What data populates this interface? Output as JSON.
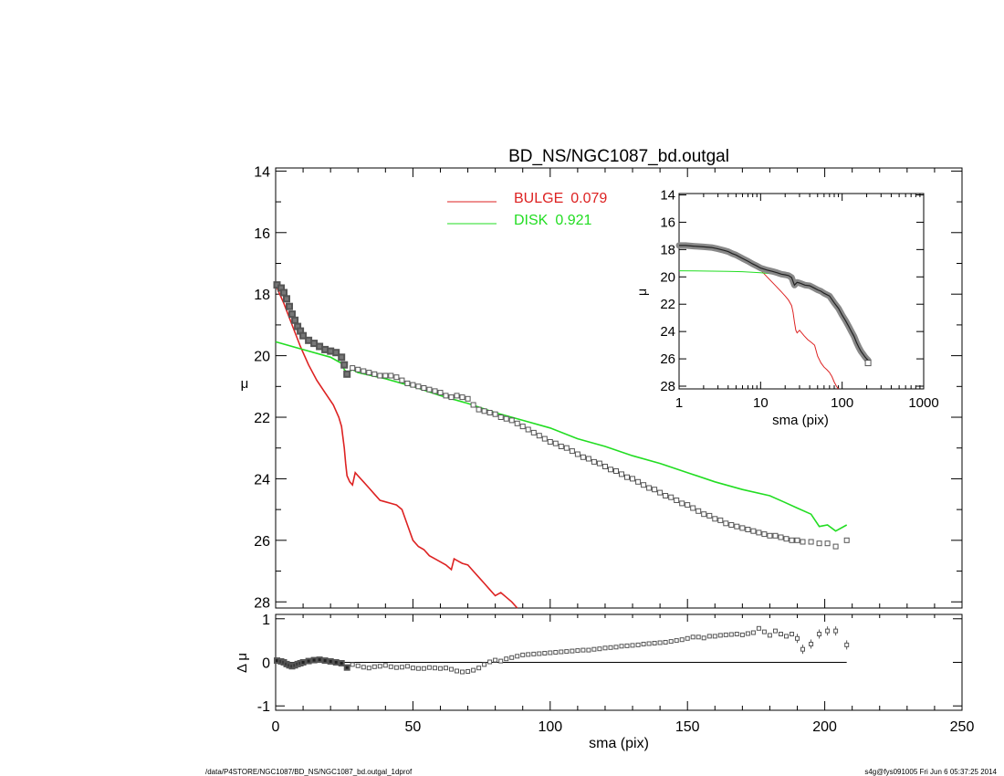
{
  "chart_data": [
    {
      "panel": "main",
      "type": "line",
      "title": "BD_NS/NGC1087_bd.outgal",
      "xlabel": "",
      "ylabel": "μ",
      "xlim": [
        0,
        250
      ],
      "ylim": [
        28.2,
        13.9
      ],
      "y_inverted": true,
      "xticks": [
        "0",
        "50",
        "100",
        "150",
        "200",
        "250"
      ],
      "yticks": [
        "14",
        "16",
        "18",
        "20",
        "22",
        "24",
        "26",
        "28"
      ],
      "legend": {
        "placement": "top-center",
        "entries": [
          {
            "label": "BULGE",
            "value": "0.079",
            "color": "#dd2222"
          },
          {
            "label": "DISK",
            "value": "0.921",
            "color": "#22dd22"
          }
        ]
      },
      "series": [
        {
          "kind": "data-points",
          "color": "#555555",
          "x": [
            0.5,
            2,
            3,
            4,
            5,
            6,
            7,
            8,
            9,
            10,
            12,
            14,
            16,
            18,
            20,
            22,
            24,
            25,
            26,
            28,
            30,
            32,
            34,
            36,
            38,
            40,
            42,
            44,
            46,
            48,
            50,
            52,
            54,
            56,
            58,
            60,
            62,
            64,
            66,
            68,
            70,
            72,
            74,
            76,
            78,
            80,
            82,
            84,
            86,
            88,
            90,
            92,
            94,
            96,
            98,
            100,
            102,
            104,
            106,
            108,
            110,
            112,
            114,
            116,
            118,
            120,
            122,
            124,
            126,
            128,
            130,
            132,
            134,
            136,
            138,
            140,
            142,
            144,
            146,
            148,
            150,
            152,
            154,
            156,
            158,
            160,
            162,
            164,
            166,
            168,
            170,
            172,
            174,
            176,
            178,
            180,
            182,
            184,
            186,
            188,
            190,
            192,
            195,
            198,
            201,
            204,
            208
          ],
          "y": [
            17.7,
            17.8,
            17.95,
            18.15,
            18.4,
            18.65,
            18.85,
            19.05,
            19.2,
            19.35,
            19.5,
            19.6,
            19.7,
            19.8,
            19.85,
            19.9,
            20.05,
            20.3,
            20.6,
            20.4,
            20.45,
            20.5,
            20.55,
            20.6,
            20.65,
            20.65,
            20.65,
            20.7,
            20.8,
            20.9,
            20.95,
            21.0,
            21.05,
            21.1,
            21.15,
            21.2,
            21.3,
            21.35,
            21.3,
            21.35,
            21.4,
            21.6,
            21.75,
            21.8,
            21.85,
            21.9,
            22.0,
            22.05,
            22.1,
            22.2,
            22.3,
            22.4,
            22.5,
            22.6,
            22.7,
            22.8,
            22.85,
            22.95,
            23.0,
            23.1,
            23.2,
            23.3,
            23.35,
            23.45,
            23.5,
            23.6,
            23.7,
            23.75,
            23.85,
            23.95,
            24.0,
            24.1,
            24.2,
            24.3,
            24.35,
            24.45,
            24.55,
            24.6,
            24.7,
            24.8,
            24.85,
            24.95,
            25.05,
            25.15,
            25.2,
            25.3,
            25.35,
            25.45,
            25.5,
            25.55,
            25.6,
            25.65,
            25.7,
            25.75,
            25.8,
            25.85,
            25.85,
            25.9,
            25.95,
            26.0,
            26.0,
            26.05,
            26.05,
            26.1,
            26.1,
            26.2,
            26.0
          ]
        },
        {
          "kind": "model",
          "name": "BULGE",
          "color": "#dd2222",
          "x": [
            0,
            3,
            6,
            9,
            12,
            15,
            18,
            21,
            23,
            24,
            25,
            25.5,
            26,
            27,
            28,
            29,
            30,
            32,
            34,
            36,
            38,
            40,
            42,
            44,
            46,
            48,
            50,
            52,
            54,
            56,
            58,
            60,
            62,
            64,
            65,
            66,
            68,
            70,
            72,
            74,
            76,
            78,
            80,
            82,
            84,
            86,
            88
          ],
          "y": [
            17.7,
            18.3,
            19.0,
            19.7,
            20.3,
            20.8,
            21.2,
            21.6,
            22.0,
            22.3,
            23.0,
            23.5,
            23.9,
            24.1,
            24.2,
            23.8,
            23.9,
            24.1,
            24.3,
            24.5,
            24.7,
            24.75,
            24.8,
            24.85,
            25.0,
            25.5,
            26.0,
            26.2,
            26.3,
            26.5,
            26.6,
            26.7,
            26.8,
            26.95,
            26.6,
            26.65,
            26.75,
            26.8,
            27.0,
            27.2,
            27.4,
            27.6,
            27.8,
            27.7,
            27.85,
            28.0,
            28.2
          ]
        },
        {
          "kind": "model",
          "name": "DISK",
          "color": "#22dd22",
          "x": [
            0,
            10,
            20,
            24,
            25,
            26,
            27,
            28,
            30,
            40,
            50,
            60,
            70,
            80,
            90,
            100,
            110,
            120,
            130,
            140,
            150,
            160,
            170,
            180,
            185,
            190,
            195,
            198,
            201,
            204,
            208
          ],
          "y": [
            19.55,
            19.8,
            20.05,
            20.25,
            20.45,
            20.55,
            20.5,
            20.45,
            20.55,
            20.75,
            21.0,
            21.3,
            21.55,
            21.85,
            22.1,
            22.35,
            22.7,
            22.95,
            23.25,
            23.5,
            23.8,
            24.1,
            24.35,
            24.55,
            24.75,
            24.95,
            25.15,
            25.55,
            25.5,
            25.7,
            25.5
          ]
        }
      ]
    },
    {
      "panel": "residual",
      "type": "scatter",
      "xlabel": "sma (pix)",
      "ylabel": "Δ μ",
      "xlim": [
        0,
        250
      ],
      "ylim": [
        -1.1,
        1.1
      ],
      "xticks": [
        "0",
        "50",
        "100",
        "150",
        "200",
        "250"
      ],
      "yticks": [
        "1",
        "0",
        "-1"
      ],
      "zero_line": {
        "x_start": 0,
        "x_end": 208
      },
      "series": [
        {
          "kind": "residuals",
          "color": "#555555",
          "x": [
            0.5,
            2,
            3,
            4,
            5,
            6,
            7,
            8,
            9,
            10,
            12,
            14,
            16,
            18,
            20,
            22,
            24,
            26,
            28,
            30,
            32,
            34,
            36,
            38,
            40,
            42,
            44,
            46,
            48,
            50,
            52,
            54,
            56,
            58,
            60,
            62,
            64,
            66,
            68,
            70,
            72,
            74,
            76,
            78,
            80,
            82,
            84,
            86,
            88,
            90,
            92,
            94,
            96,
            98,
            100,
            102,
            104,
            106,
            108,
            110,
            112,
            114,
            116,
            118,
            120,
            122,
            124,
            126,
            128,
            130,
            132,
            134,
            136,
            138,
            140,
            142,
            144,
            146,
            148,
            150,
            152,
            154,
            156,
            158,
            160,
            162,
            164,
            166,
            168,
            170,
            172,
            174,
            176,
            178,
            180,
            182,
            184,
            186,
            188,
            190,
            192,
            195,
            198,
            201,
            204,
            208
          ],
          "y": [
            0.04,
            0.02,
            0.0,
            -0.04,
            -0.07,
            -0.09,
            -0.07,
            -0.04,
            -0.02,
            0.0,
            0.03,
            0.05,
            0.06,
            0.04,
            0.02,
            0.0,
            -0.02,
            -0.12,
            -0.05,
            -0.08,
            -0.11,
            -0.13,
            -0.1,
            -0.09,
            -0.07,
            -0.1,
            -0.12,
            -0.11,
            -0.09,
            -0.13,
            -0.14,
            -0.14,
            -0.12,
            -0.13,
            -0.14,
            -0.13,
            -0.16,
            -0.2,
            -0.22,
            -0.21,
            -0.18,
            -0.13,
            -0.05,
            0.01,
            0.05,
            0.03,
            0.08,
            0.11,
            0.14,
            0.17,
            0.18,
            0.19,
            0.2,
            0.21,
            0.22,
            0.23,
            0.24,
            0.25,
            0.26,
            0.27,
            0.28,
            0.28,
            0.3,
            0.31,
            0.33,
            0.34,
            0.35,
            0.37,
            0.38,
            0.39,
            0.4,
            0.42,
            0.43,
            0.44,
            0.45,
            0.46,
            0.48,
            0.5,
            0.52,
            0.55,
            0.58,
            0.58,
            0.56,
            0.6,
            0.6,
            0.62,
            0.63,
            0.64,
            0.65,
            0.63,
            0.66,
            0.68,
            0.78,
            0.7,
            0.62,
            0.72,
            0.65,
            0.6,
            0.65,
            0.55,
            0.3,
            0.42,
            0.65,
            0.72,
            0.72,
            0.4
          ]
        }
      ]
    },
    {
      "panel": "inset",
      "type": "line",
      "xlabel": "sma (pix)",
      "ylabel": "μ",
      "x_scale": "log",
      "xlim": [
        1,
        1000
      ],
      "ylim": [
        28.2,
        13.9
      ],
      "y_inverted": true,
      "xticks": [
        "1",
        "10",
        "100",
        "1000"
      ],
      "yticks": [
        "14",
        "16",
        "18",
        "20",
        "22",
        "24",
        "26",
        "28"
      ],
      "series": [
        {
          "kind": "data-points",
          "color": "#555555",
          "x": [
            1,
            1.2,
            1.5,
            2,
            2.5,
            3,
            3.5,
            4,
            4.5,
            5,
            6,
            7,
            8,
            9,
            10,
            12,
            14,
            16,
            18,
            20,
            22,
            24,
            26,
            28,
            30,
            35,
            40,
            45,
            50,
            55,
            60,
            70,
            80,
            90,
            100,
            110,
            120,
            130,
            140,
            150,
            160,
            170,
            180,
            190,
            200,
            208
          ],
          "y": [
            17.7,
            17.7,
            17.75,
            17.8,
            17.85,
            17.95,
            18.05,
            18.15,
            18.3,
            18.4,
            18.65,
            18.85,
            19.05,
            19.2,
            19.35,
            19.5,
            19.6,
            19.7,
            19.8,
            19.85,
            19.9,
            20.05,
            20.6,
            20.4,
            20.45,
            20.6,
            20.65,
            20.8,
            20.95,
            21.05,
            21.2,
            21.4,
            21.9,
            22.3,
            22.8,
            23.2,
            23.6,
            24.0,
            24.35,
            24.8,
            25.15,
            25.45,
            25.65,
            25.85,
            26.0,
            26.1
          ]
        },
        {
          "kind": "model",
          "name": "BULGE",
          "color": "#dd2222",
          "x": [
            1,
            2,
            3,
            4,
            5,
            6,
            8,
            10,
            12,
            15,
            18,
            20,
            22,
            24,
            25,
            26,
            27,
            28,
            30,
            34,
            38,
            42,
            46,
            50,
            55,
            60,
            65,
            70,
            75,
            80,
            85,
            90
          ],
          "y": [
            17.7,
            17.9,
            18.1,
            18.25,
            18.4,
            18.6,
            19.0,
            19.5,
            20.0,
            20.6,
            21.1,
            21.4,
            21.7,
            22.1,
            22.6,
            23.3,
            23.9,
            24.1,
            23.9,
            24.3,
            24.6,
            24.8,
            25.0,
            25.8,
            26.3,
            26.6,
            26.8,
            27.0,
            27.3,
            27.7,
            28.0,
            28.2
          ]
        },
        {
          "kind": "model",
          "name": "DISK",
          "color": "#22dd22",
          "x": [
            1,
            2,
            4,
            6,
            10,
            15,
            20,
            25,
            28
          ],
          "y": [
            19.55,
            19.57,
            19.6,
            19.62,
            19.7,
            19.8,
            19.95,
            20.2,
            20.5
          ]
        }
      ]
    }
  ],
  "footer": {
    "left": "/data/P4STORE/NGC1087/BD_NS/NGC1087_bd.outgal_1dprof",
    "right": "s4g@fys091005  Fri Jun  6 05:37:25 2014"
  }
}
